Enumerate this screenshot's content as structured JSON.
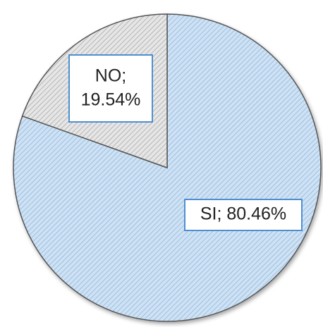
{
  "chart_data": {
    "type": "pie",
    "values": [
      80.46,
      19.54
    ],
    "value_labels": [
      "SI; 80.46%",
      "NO; 19.54%"
    ],
    "colors": [
      "#cfe2f4",
      "#e6e6e6"
    ],
    "hatch_colors": [
      "#8fb6dc",
      "#a9a9a9"
    ]
  }
}
